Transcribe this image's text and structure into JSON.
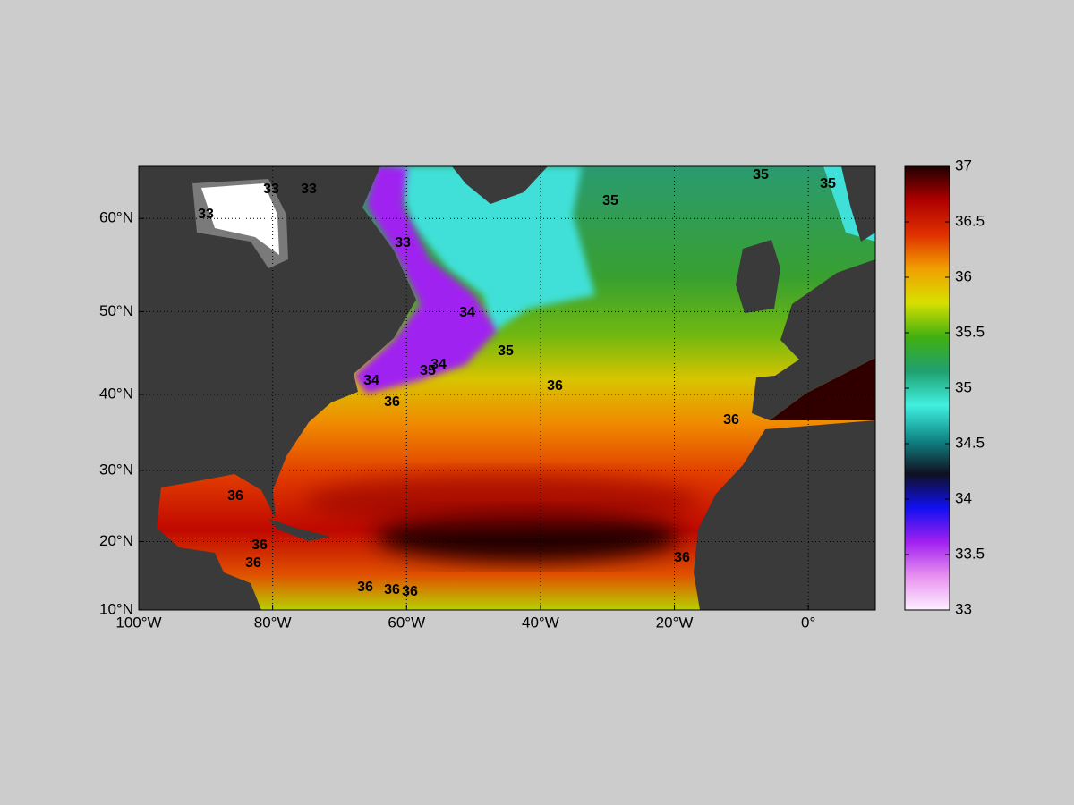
{
  "chart_data": {
    "type": "map",
    "xlim": [
      -100,
      10
    ],
    "ylim": [
      10,
      65
    ],
    "xticks": [
      {
        "value": -100,
        "label": "100°W"
      },
      {
        "value": -80,
        "label": "80°W"
      },
      {
        "value": -60,
        "label": "60°W"
      },
      {
        "value": -40,
        "label": "40°W"
      },
      {
        "value": -20,
        "label": "20°W"
      },
      {
        "value": 0,
        "label": "0°"
      }
    ],
    "yticks": [
      {
        "value": 10,
        "label": "10°N"
      },
      {
        "value": 20,
        "label": "20°N"
      },
      {
        "value": 30,
        "label": "30°N"
      },
      {
        "value": 40,
        "label": "40°N"
      },
      {
        "value": 50,
        "label": "50°N"
      },
      {
        "value": 60,
        "label": "60°N"
      }
    ],
    "grid": true,
    "colorbar": {
      "lim": [
        33,
        37
      ],
      "ticks": [
        33,
        33.5,
        34,
        34.5,
        35,
        35.5,
        36,
        36.5,
        37
      ],
      "colors": [
        "#fdf0ff",
        "#e890f0",
        "#a020f0",
        "#1010f0",
        "#101020",
        "#108888",
        "#40f0e0",
        "#20a070",
        "#40b010",
        "#d8e000",
        "#f0a000",
        "#e03000",
        "#b00000",
        "#200000"
      ]
    },
    "contour_labels": [
      33,
      33,
      33,
      33,
      34,
      34,
      34,
      35,
      35,
      35,
      35,
      35,
      36,
      36,
      36,
      36,
      36,
      36,
      36,
      36,
      36,
      36
    ]
  }
}
